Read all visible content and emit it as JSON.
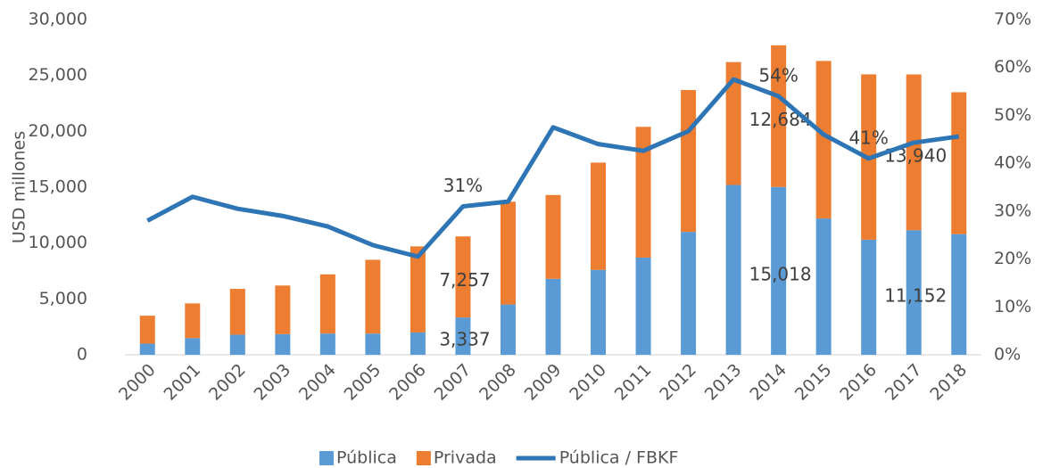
{
  "chart_data": {
    "type": "stacked_bar_line",
    "y_axis_label": "USD millones",
    "categories": [
      "2000",
      "2001",
      "2002",
      "2003",
      "2004",
      "2005",
      "2006",
      "2007",
      "2008",
      "2009",
      "2010",
      "2011",
      "2012",
      "2013",
      "2014",
      "2015",
      "2016",
      "2017",
      "2018"
    ],
    "series": [
      {
        "name": "Pública",
        "color": "#5b9bd5",
        "type": "bar",
        "values": [
          1000,
          1500,
          1800,
          1850,
          1900,
          1900,
          2000,
          3337,
          4500,
          6800,
          7600,
          8700,
          11000,
          15200,
          15018,
          12200,
          10300,
          11152,
          10800
        ],
        "value_labels": [
          null,
          null,
          null,
          null,
          null,
          null,
          null,
          "3,337",
          null,
          null,
          null,
          null,
          null,
          null,
          "15,018",
          null,
          null,
          "11,152",
          null
        ]
      },
      {
        "name": "Privada",
        "color": "#ed7d31",
        "type": "bar",
        "values": [
          2500,
          3100,
          4100,
          4350,
          5300,
          6600,
          7700,
          7257,
          9200,
          7500,
          9600,
          11700,
          12700,
          11000,
          12684,
          14100,
          14800,
          13940,
          12700
        ],
        "value_labels": [
          null,
          null,
          null,
          null,
          null,
          null,
          null,
          "7,257",
          null,
          null,
          null,
          null,
          null,
          null,
          "12,684",
          null,
          null,
          "13,940",
          null
        ]
      },
      {
        "name": "Pública / FBKF",
        "color": "#2e75b6",
        "type": "line",
        "axis": "y2",
        "values": [
          28,
          33,
          30.5,
          29,
          26.8,
          22.9,
          20.5,
          31,
          32,
          47.5,
          44,
          42.6,
          46.7,
          57.5,
          54,
          46,
          41,
          44.3,
          45.6
        ],
        "value_labels": [
          null,
          null,
          null,
          null,
          null,
          null,
          null,
          "31%",
          null,
          null,
          null,
          null,
          null,
          null,
          "54%",
          null,
          "41%",
          null,
          null
        ]
      }
    ],
    "ylim": [
      0,
      30000
    ],
    "yticks": [
      0,
      {
        "value": 5000,
        "label": "5,000"
      },
      {
        "value": 10000,
        "label": "10,000"
      },
      {
        "value": 15000,
        "label": "15,000"
      },
      {
        "value": 20000,
        "label": "20,000"
      },
      {
        "value": 25000,
        "label": "25,000"
      },
      {
        "value": 30000,
        "label": "30,000"
      }
    ],
    "y2lim": [
      0,
      70
    ],
    "y2ticks": [
      {
        "value": 0,
        "label": "0%"
      },
      {
        "value": 10,
        "label": "10%"
      },
      {
        "value": 20,
        "label": "20%"
      },
      {
        "value": 30,
        "label": "30%"
      },
      {
        "value": 40,
        "label": "40%"
      },
      {
        "value": 50,
        "label": "50%"
      },
      {
        "value": 60,
        "label": "60%"
      },
      {
        "value": 70,
        "label": "70%"
      }
    ],
    "grid": false,
    "legend": "bottom"
  }
}
